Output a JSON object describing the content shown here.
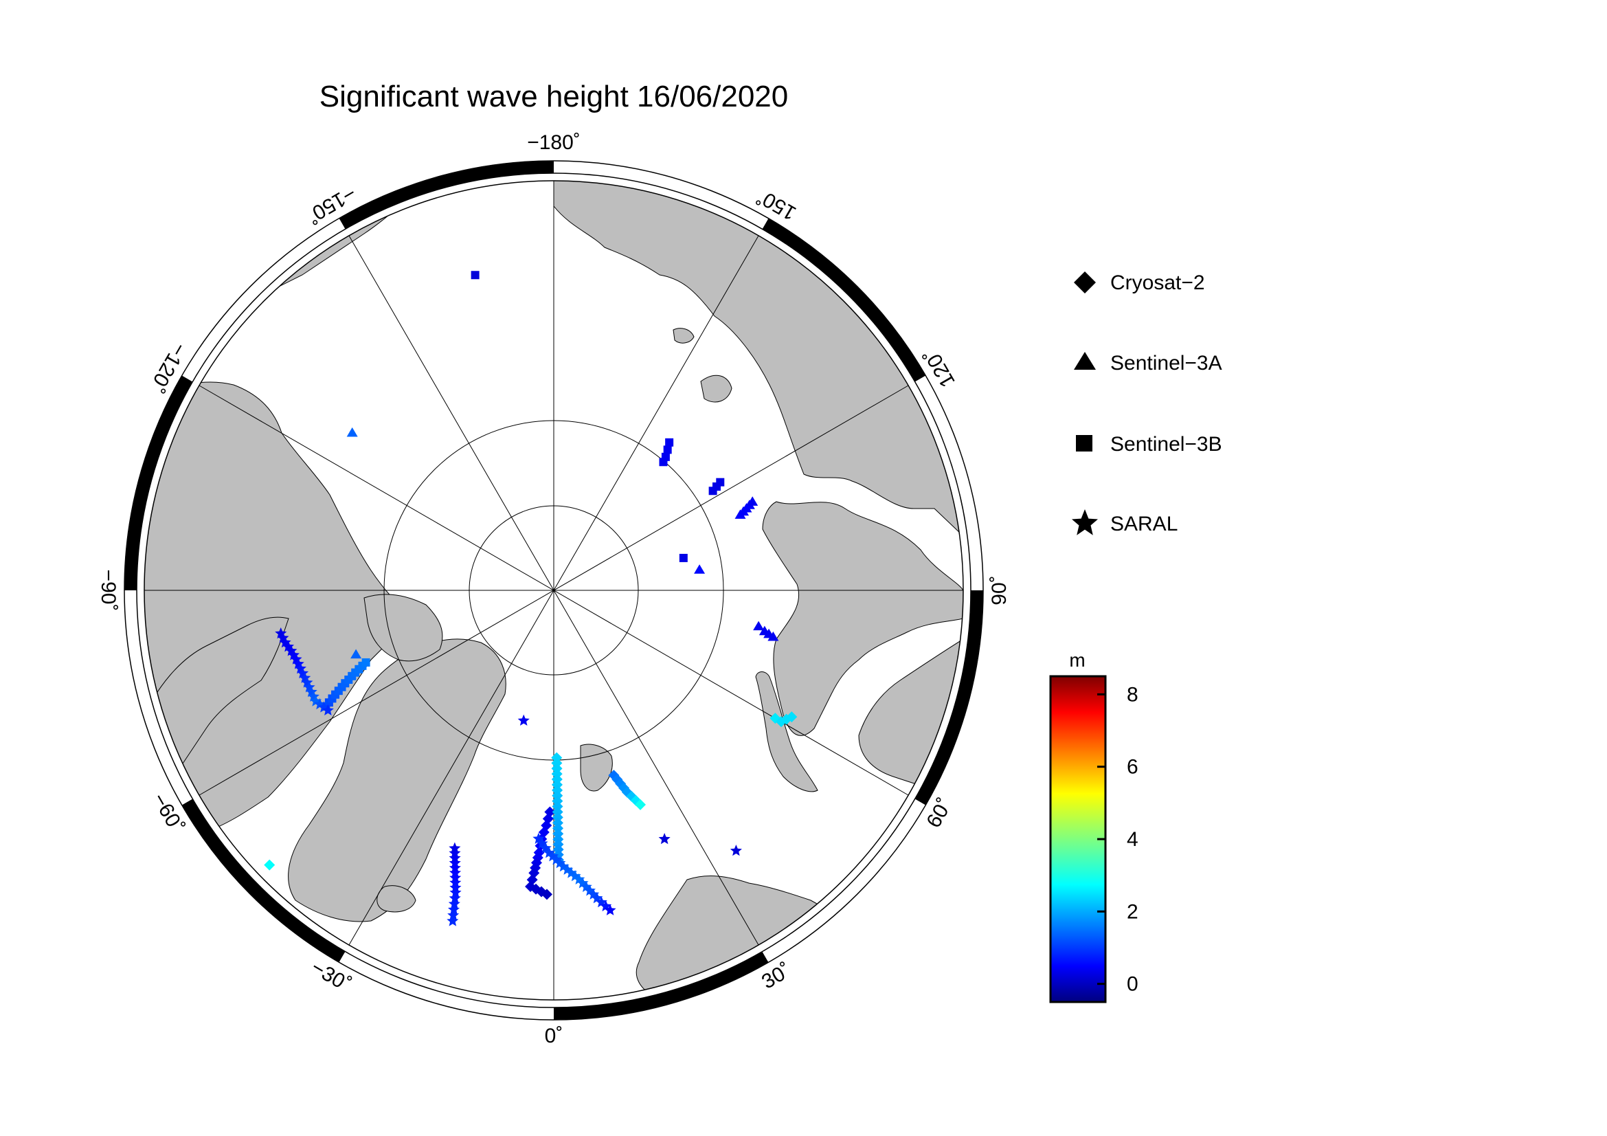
{
  "title": "Significant wave height 16/06/2020",
  "longitude_labels": [
    {
      "lon": -180,
      "text": "−180˚"
    },
    {
      "lon": 150,
      "text": "150˚"
    },
    {
      "lon": 120,
      "text": "120˚"
    },
    {
      "lon": 90,
      "text": "90˚"
    },
    {
      "lon": 60,
      "text": "60˚"
    },
    {
      "lon": 30,
      "text": "30˚"
    },
    {
      "lon": 0,
      "text": "0˚"
    },
    {
      "lon": -30,
      "text": "−30˚"
    },
    {
      "lon": -60,
      "text": "−60˚"
    },
    {
      "lon": -90,
      "text": "−90˚"
    },
    {
      "lon": -120,
      "text": "−120˚"
    },
    {
      "lon": -150,
      "text": "−150˚"
    }
  ],
  "legend": [
    {
      "symbol": "diamond",
      "label": "Cryosat−2"
    },
    {
      "symbol": "triangle",
      "label": "Sentinel−3A"
    },
    {
      "symbol": "square",
      "label": "Sentinel−3B"
    },
    {
      "symbol": "star",
      "label": "SARAL"
    }
  ],
  "colorbar": {
    "unit": "m",
    "min": -0.5,
    "max": 8.5,
    "ticks": [
      "0",
      "2",
      "4",
      "6",
      "8"
    ],
    "tick_values": [
      0,
      2,
      4,
      6,
      8
    ],
    "colormap": "jet"
  },
  "colors": {
    "land": "#bebebe",
    "ocean": "#ffffff",
    "frame": "#000000"
  },
  "chart_data": {
    "type": "scatter",
    "projection": "north polar stereographic",
    "series": [
      {
        "name": "Cryosat−2",
        "points": [
          {
            "lon": -1,
            "lat": 73.5,
            "swh": 0.4
          },
          {
            "lon": -1.8,
            "lat": 72.5,
            "swh": 0.5
          },
          {
            "lon": -2.8,
            "lat": 71.5,
            "swh": 0.6
          },
          {
            "lon": -3.2,
            "lat": 70.5,
            "swh": 0.6
          },
          {
            "lon": -4.0,
            "lat": 69.0,
            "swh": 0.3
          },
          {
            "lon": -4.5,
            "lat": 68.0,
            "swh": 0.2
          },
          {
            "lon": -1.3,
            "lat": 67.5,
            "swh": 0.1
          },
          {
            "lon": 1.0,
            "lat": 77.5,
            "swh": 2.5
          },
          {
            "lon": 1.0,
            "lat": 75.5,
            "swh": 2.4
          },
          {
            "lon": 1.0,
            "lat": 73.5,
            "swh": 2.2
          },
          {
            "lon": 1.0,
            "lat": 71.5,
            "swh": 2.0
          },
          {
            "lon": 1.0,
            "lat": 70.0,
            "swh": 1.8
          },
          {
            "lon": 18,
            "lat": 75.5,
            "swh": 1.6
          },
          {
            "lon": 20,
            "lat": 74.0,
            "swh": 2.0
          },
          {
            "lon": 22,
            "lat": 72.8,
            "swh": 3.0
          },
          {
            "lon": 60,
            "lat": 71.0,
            "swh": 2.7
          },
          {
            "lon": 60,
            "lat": 70.5,
            "swh": 2.6
          },
          {
            "lon": 62,
            "lat": 70.0,
            "swh": 2.6
          },
          {
            "lon": -46,
            "lat": 61.0,
            "swh": 2.9
          }
        ]
      },
      {
        "name": "Sentinel−3A",
        "points": [
          {
            "lon": -128,
            "lat": 71.0,
            "swh": 1.5
          },
          {
            "lon": -72,
            "lat": 74.5,
            "swh": 1.5
          },
          {
            "lon": 112,
            "lat": 75.0,
            "swh": 0.6
          },
          {
            "lon": 112.5,
            "lat": 74.7,
            "swh": 0.6
          },
          {
            "lon": 113,
            "lat": 74.4,
            "swh": 0.6
          },
          {
            "lon": 113.5,
            "lat": 74.1,
            "swh": 0.6
          },
          {
            "lon": 114,
            "lat": 73.8,
            "swh": 0.5
          },
          {
            "lon": 98,
            "lat": 79.0,
            "swh": 0.7
          },
          {
            "lon": 80,
            "lat": 74.5,
            "swh": 0.5
          },
          {
            "lon": 79,
            "lat": 74.0,
            "swh": 0.5
          },
          {
            "lon": 78,
            "lat": 73.3,
            "swh": 0.5
          }
        ]
      },
      {
        "name": "Sentinel−3B",
        "points": [
          {
            "lon": -166,
            "lat": 66.0,
            "swh": 0.3
          },
          {
            "lon": 142,
            "lat": 76.0,
            "swh": 0.5
          },
          {
            "lon": 141,
            "lat": 76.5,
            "swh": 0.5
          },
          {
            "lon": 140,
            "lat": 77.0,
            "swh": 0.5
          },
          {
            "lon": 139.5,
            "lat": 77.4,
            "swh": 0.5
          },
          {
            "lon": 122,
            "lat": 76.0,
            "swh": 0.4
          },
          {
            "lon": 122.5,
            "lat": 75.6,
            "swh": 0.4
          },
          {
            "lon": 123,
            "lat": 75.2,
            "swh": 0.4
          },
          {
            "lon": 104,
            "lat": 80.0,
            "swh": 0.4
          },
          {
            "lon": -63,
            "lat": 71.0,
            "swh": 1.2
          },
          {
            "lon": -64.5,
            "lat": 72.0,
            "swh": 1.4
          },
          {
            "lon": -66.0,
            "lat": 73.0,
            "swh": 1.5
          },
          {
            "lon": -67.5,
            "lat": 74.0,
            "swh": 1.6
          },
          {
            "lon": -69.0,
            "lat": 75.0,
            "swh": 1.7
          }
        ]
      },
      {
        "name": "SARAL",
        "points": [
          {
            "lon": -81,
            "lat": 69.5,
            "swh": 0.4
          },
          {
            "lon": -79,
            "lat": 69.7,
            "swh": 0.5
          },
          {
            "lon": -77,
            "lat": 70.0,
            "swh": 0.5
          },
          {
            "lon": -75,
            "lat": 70.2,
            "swh": 0.6
          },
          {
            "lon": -65,
            "lat": 70.5,
            "swh": 1.5
          },
          {
            "lon": -62,
            "lat": 71.0,
            "swh": 1.0
          },
          {
            "lon": -13,
            "lat": 80.0,
            "swh": 0.5
          },
          {
            "lon": -21,
            "lat": 69.5,
            "swh": 0.4
          },
          {
            "lon": -18,
            "lat": 66.5,
            "swh": 0.8
          },
          {
            "lon": -17,
            "lat": 64.5,
            "swh": 1.0
          },
          {
            "lon": -3.5,
            "lat": 71.5,
            "swh": 1.0
          },
          {
            "lon": -1,
            "lat": 70.5,
            "swh": 1.2
          },
          {
            "lon": 2,
            "lat": 69.5,
            "swh": 1.4
          },
          {
            "lon": 5,
            "lat": 68.5,
            "swh": 1.6
          },
          {
            "lon": 8,
            "lat": 67.0,
            "swh": 1.2
          },
          {
            "lon": 10,
            "lat": 66.0,
            "swh": 0.6
          },
          {
            "lon": 24,
            "lat": 69.8,
            "swh": 0.3
          },
          {
            "lon": 35,
            "lat": 66.5,
            "swh": 0.3
          }
        ]
      }
    ]
  }
}
